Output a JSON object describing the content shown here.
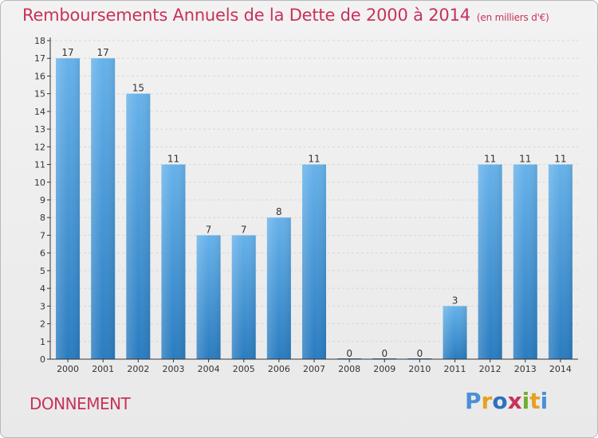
{
  "title": {
    "main": "Remboursements Annuels de la Dette de 2000 à 2014",
    "unit": "(en milliers d'€)"
  },
  "commune": "DONNEMENT",
  "logo": {
    "letters": [
      "P",
      "r",
      "o",
      "x",
      "i",
      "t",
      "i"
    ],
    "colors": [
      "#4a90d8",
      "#e8a020",
      "#2f6fbf",
      "#c8325a",
      "#70b030",
      "#e8a020",
      "#4a90d8"
    ]
  },
  "colors": {
    "bar_top": "#67b2ea",
    "bar_bottom": "#2a7cc0",
    "axis": "#333333",
    "grid": "#d8d8d8",
    "label": "#333333"
  },
  "chart_data": {
    "type": "bar",
    "title": "Remboursements Annuels de la Dette de 2000 à 2014",
    "xlabel": "",
    "ylabel": "",
    "ylim": [
      0,
      18
    ],
    "yticks": [
      0,
      1,
      2,
      3,
      4,
      5,
      6,
      7,
      8,
      9,
      10,
      11,
      12,
      13,
      14,
      15,
      16,
      17,
      18
    ],
    "categories": [
      "2000",
      "2001",
      "2002",
      "2003",
      "2004",
      "2005",
      "2006",
      "2007",
      "2008",
      "2009",
      "2010",
      "2011",
      "2012",
      "2013",
      "2014"
    ],
    "values": [
      17,
      17,
      15,
      11,
      7,
      7,
      8,
      11,
      0,
      0,
      0,
      3,
      11,
      11,
      11
    ]
  }
}
